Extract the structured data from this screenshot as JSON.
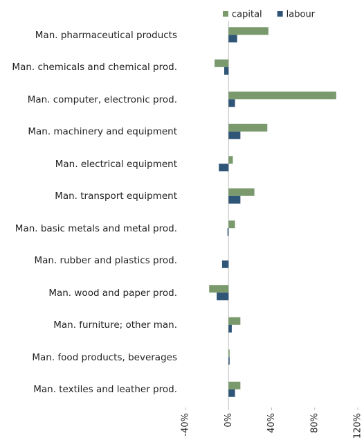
{
  "chart_data": {
    "type": "bar",
    "orientation": "horizontal",
    "categories": [
      "Man.  pharmaceutical products",
      "Man. chemicals and chemical prod.",
      "Man. computer, electronic prod.",
      "Man. machinery and equipment",
      "Man. electrical equipment",
      "Man. transport equipment",
      "Man. basic metals and metal prod.",
      "Man. rubber and plastics prod.",
      "Man. wood and paper prod.",
      "Man. furniture; other man.",
      "Man. food products, beverages",
      "Man. textiles and leather prod."
    ],
    "series": [
      {
        "name": "capital",
        "color": "#7a9a6e",
        "values": [
          37,
          -13,
          100,
          36,
          4,
          24,
          6,
          0,
          -18,
          11,
          1,
          11
        ]
      },
      {
        "name": "labour",
        "color": "#2f5577",
        "values": [
          8,
          -4,
          6,
          11,
          -9,
          11,
          -1,
          -6,
          -11,
          3,
          1,
          6
        ]
      }
    ],
    "xlim": [
      -40,
      120
    ],
    "xticks": [
      {
        "value": -40,
        "label": "-40%"
      },
      {
        "value": 0,
        "label": "0%"
      },
      {
        "value": 40,
        "label": "40%"
      },
      {
        "value": 80,
        "label": "80%"
      },
      {
        "value": 120,
        "label": "120%"
      }
    ],
    "legend": "top"
  }
}
